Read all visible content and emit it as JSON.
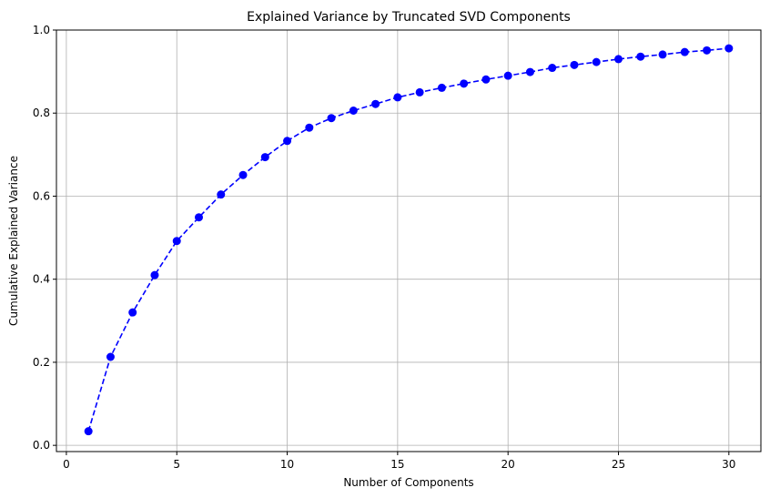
{
  "chart_data": {
    "type": "line",
    "title": "Explained Variance by Truncated SVD Components",
    "xlabel": "Number of Components",
    "ylabel": "Cumulative Explained Variance",
    "xlim": [
      -0.45,
      31.45
    ],
    "ylim": [
      -0.015,
      1.0
    ],
    "xticks": [
      0,
      5,
      10,
      15,
      20,
      25,
      30
    ],
    "yticks": [
      0.0,
      0.2,
      0.4,
      0.6,
      0.8,
      1.0
    ],
    "xtick_labels": [
      "0",
      "5",
      "10",
      "15",
      "20",
      "25",
      "30"
    ],
    "ytick_labels": [
      "0.0",
      "0.2",
      "0.4",
      "0.6",
      "0.8",
      "1.0"
    ],
    "grid": true,
    "line_style": "dashed",
    "marker": "circle",
    "color": "#0000ff",
    "series": [
      {
        "x": [
          1,
          2,
          3,
          4,
          5,
          6,
          7,
          8,
          9,
          10,
          11,
          12,
          13,
          14,
          15,
          16,
          17,
          18,
          19,
          20,
          21,
          22,
          23,
          24,
          25,
          26,
          27,
          28,
          29,
          30
        ],
        "values": [
          0.034,
          0.213,
          0.32,
          0.41,
          0.492,
          0.549,
          0.604,
          0.651,
          0.694,
          0.733,
          0.765,
          0.788,
          0.806,
          0.822,
          0.838,
          0.85,
          0.861,
          0.871,
          0.881,
          0.89,
          0.899,
          0.909,
          0.916,
          0.923,
          0.93,
          0.936,
          0.941,
          0.947,
          0.951,
          0.956
        ]
      }
    ]
  }
}
